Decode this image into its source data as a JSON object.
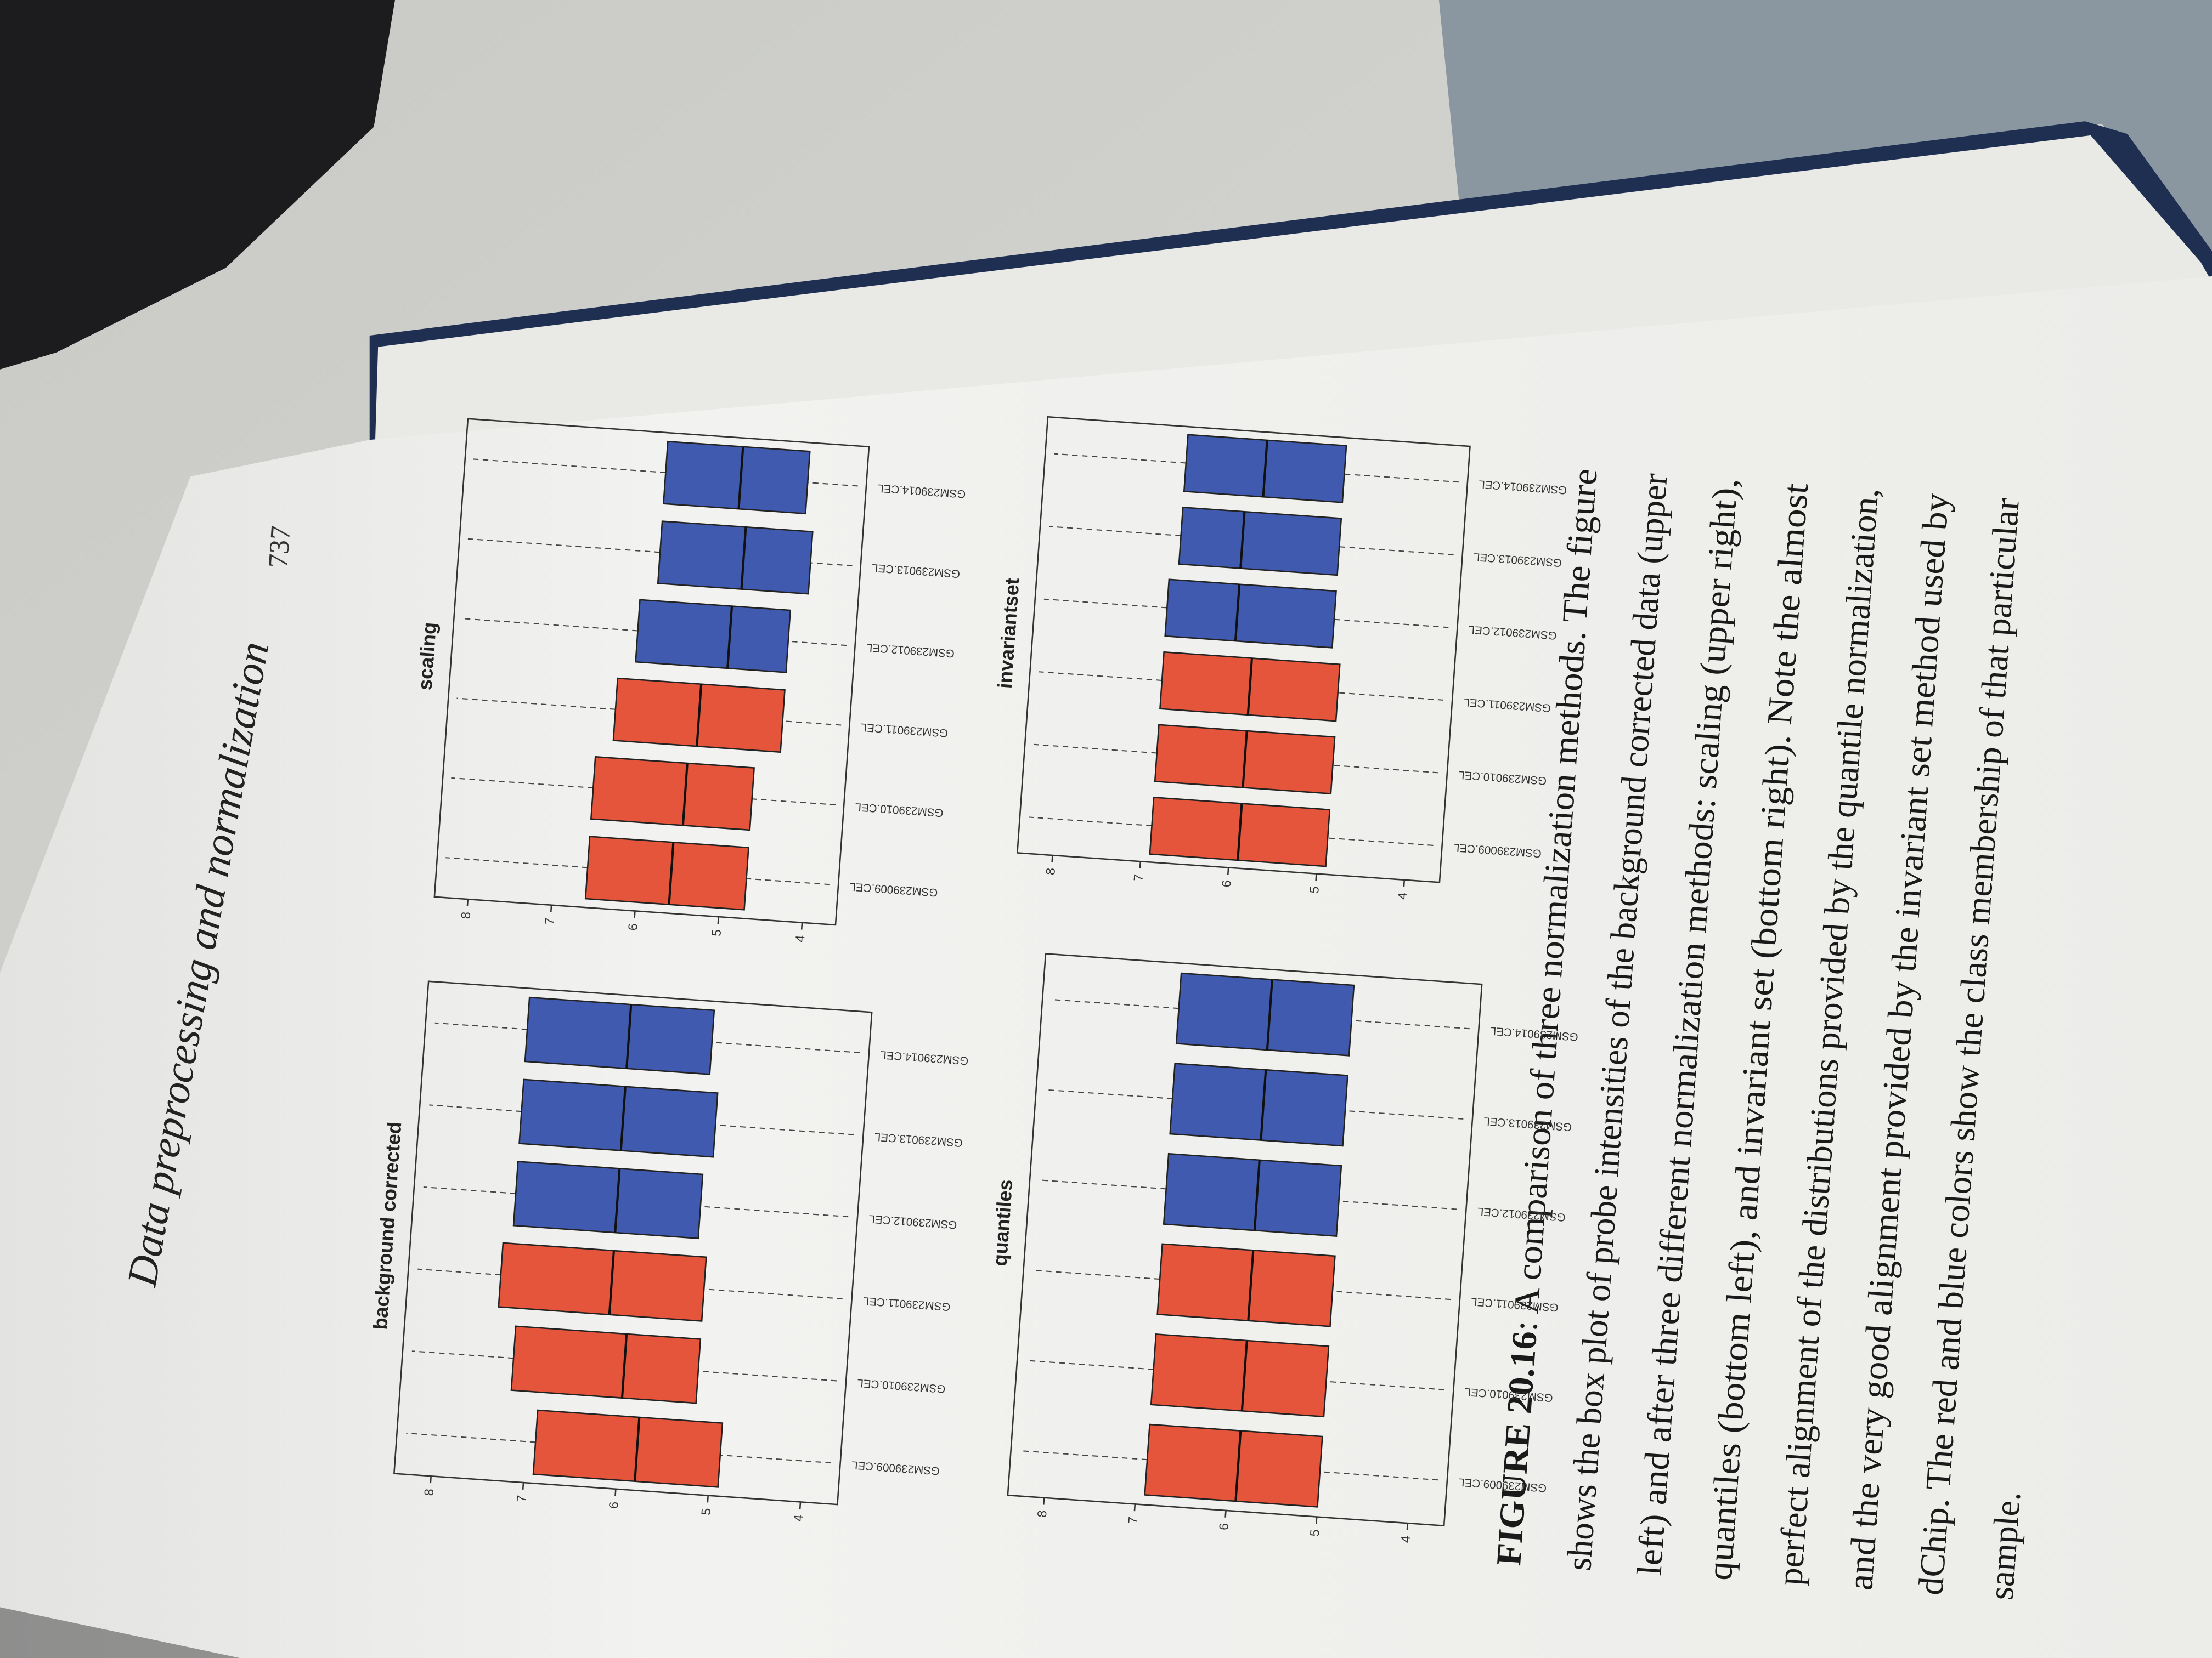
{
  "header": {
    "title": "Data preprocessing and normalization",
    "page_number": "737"
  },
  "chart_data": [
    {
      "type": "box",
      "title": "background corrected",
      "categories": [
        "GSM239009.CEL",
        "GSM239010.CEL",
        "GSM239011.CEL",
        "GSM239012.CEL",
        "GSM239013.CEL",
        "GSM239014.CEL"
      ],
      "low": [
        3.7,
        3.7,
        3.7,
        3.7,
        3.7,
        3.7
      ],
      "q1": [
        4.9,
        5.2,
        5.2,
        5.3,
        5.2,
        5.3
      ],
      "median": [
        5.8,
        6.0,
        6.2,
        6.2,
        6.2,
        6.2
      ],
      "q3": [
        6.9,
        7.2,
        7.4,
        7.3,
        7.3,
        7.3
      ],
      "high": [
        8.3,
        8.3,
        8.3,
        8.3,
        8.3,
        8.3
      ],
      "colors": [
        "#e4553c",
        "#e4553c",
        "#e4553c",
        "#3f5aae",
        "#3f5aae",
        "#3f5aae"
      ],
      "ylim": [
        3.6,
        8.4
      ],
      "yticks": [
        4,
        5,
        6,
        7,
        8
      ]
    },
    {
      "type": "box",
      "title": "scaling",
      "categories": [
        "GSM239009.CEL",
        "GSM239010.CEL",
        "GSM239011.CEL",
        "GSM239012.CEL",
        "GSM239013.CEL",
        "GSM239014.CEL"
      ],
      "low": [
        3.7,
        3.7,
        3.7,
        3.7,
        3.7,
        3.7
      ],
      "q1": [
        4.7,
        4.7,
        4.4,
        4.4,
        4.2,
        4.3
      ],
      "median": [
        5.6,
        5.5,
        5.4,
        5.1,
        5.0,
        5.1
      ],
      "q3": [
        6.6,
        6.6,
        6.4,
        6.2,
        6.0,
        6.0
      ],
      "high": [
        8.3,
        8.3,
        8.3,
        8.3,
        8.3,
        8.3
      ],
      "colors": [
        "#e4553c",
        "#e4553c",
        "#e4553c",
        "#3f5aae",
        "#3f5aae",
        "#3f5aae"
      ],
      "ylim": [
        3.6,
        8.4
      ],
      "yticks": [
        4,
        5,
        6,
        7,
        8
      ]
    },
    {
      "type": "box",
      "title": "quantiles",
      "categories": [
        "GSM239009.CEL",
        "GSM239010.CEL",
        "GSM239011.CEL",
        "GSM239012.CEL",
        "GSM239013.CEL",
        "GSM239014.CEL"
      ],
      "low": [
        3.7,
        3.7,
        3.7,
        3.7,
        3.7,
        3.7
      ],
      "q1": [
        5.0,
        5.0,
        5.0,
        5.0,
        5.0,
        5.0
      ],
      "median": [
        5.9,
        5.9,
        5.9,
        5.9,
        5.9,
        5.9
      ],
      "q3": [
        6.9,
        6.9,
        6.9,
        6.9,
        6.9,
        6.9
      ],
      "high": [
        8.3,
        8.3,
        8.3,
        8.3,
        8.3,
        8.3
      ],
      "colors": [
        "#e4553c",
        "#e4553c",
        "#e4553c",
        "#3f5aae",
        "#3f5aae",
        "#3f5aae"
      ],
      "ylim": [
        3.6,
        8.4
      ],
      "yticks": [
        4,
        5,
        6,
        7,
        8
      ]
    },
    {
      "type": "box",
      "title": "invariantset",
      "categories": [
        "GSM239009.CEL",
        "GSM239010.CEL",
        "GSM239011.CEL",
        "GSM239012.CEL",
        "GSM239013.CEL",
        "GSM239014.CEL"
      ],
      "low": [
        3.7,
        3.7,
        3.7,
        3.7,
        3.7,
        3.7
      ],
      "q1": [
        4.9,
        4.9,
        4.9,
        5.0,
        5.0,
        5.0
      ],
      "median": [
        5.9,
        5.9,
        5.9,
        6.1,
        6.1,
        5.9
      ],
      "q3": [
        6.9,
        6.9,
        6.9,
        6.9,
        6.8,
        6.8
      ],
      "high": [
        8.3,
        8.3,
        8.3,
        8.3,
        8.3,
        8.3
      ],
      "colors": [
        "#e4553c",
        "#e4553c",
        "#e4553c",
        "#3f5aae",
        "#3f5aae",
        "#3f5aae"
      ],
      "ylim": [
        3.6,
        8.4
      ],
      "yticks": [
        4,
        5,
        6,
        7,
        8
      ]
    }
  ],
  "caption": {
    "label": "FIGURE 20.16",
    "lines": [
      ": A comparison of three normalization methods. The figure",
      "shows the box plot of probe intensities of the background corrected data (upper",
      "left) and after three different normalization methods: scaling (upper right),",
      "quantiles (bottom left), and invariant set (bottom right). Note the almost",
      "perfect alignment of the distributions provided by the quantile normalization,",
      "and the very good alignment provided by the invariant set method used by",
      "dChip. The red and blue colors show the class membership of that particular",
      "sample."
    ]
  }
}
